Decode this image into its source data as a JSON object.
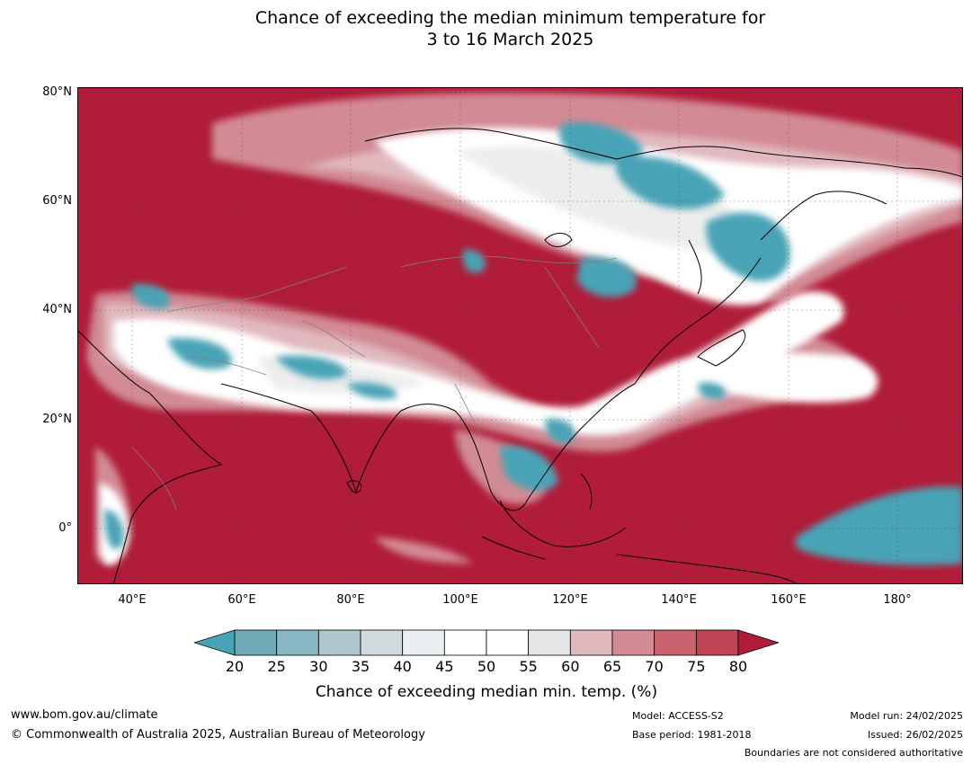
{
  "title": {
    "line1": "Chance of exceeding the median minimum temperature for",
    "line2": "3 to 16 March 2025"
  },
  "map": {
    "lat_labels": [
      "80°N",
      "60°N",
      "40°N",
      "20°N",
      "0°"
    ],
    "lon_labels": [
      "40°E",
      "60°E",
      "80°E",
      "100°E",
      "120°E",
      "140°E",
      "160°E",
      "180°"
    ],
    "colors": {
      "background_high": "#b01c39",
      "land_below": "#48a3b6",
      "neutral": "#ffffff",
      "coastline": "#000000",
      "boundary": "#808080"
    }
  },
  "colorbar": {
    "ticks": [
      "20",
      "25",
      "30",
      "35",
      "40",
      "45",
      "50",
      "55",
      "60",
      "65",
      "70",
      "75",
      "80"
    ],
    "colors": [
      "#48a3b6",
      "#6eaab6",
      "#88b7c3",
      "#aec6cc",
      "#d1dadd",
      "#eaf0f2",
      "#ffffff",
      "#ffffff",
      "#e6e6e6",
      "#e0b9bf",
      "#d28a94",
      "#c8636f",
      "#bd4453",
      "#b01c39"
    ],
    "label": "Chance of exceeding median min. temp. (%)"
  },
  "footer": {
    "website": "www.bom.gov.au/climate",
    "copyright": "© Commonwealth of Australia 2025, Australian Bureau of Meteorology",
    "model": "Model: ACCESS-S2",
    "base_period": "Base period: 1981-2018",
    "model_run": "Model run: 24/02/2025",
    "issued": "Issued: 26/02/2025",
    "boundaries_note": "Boundaries are not considered authoritative"
  }
}
